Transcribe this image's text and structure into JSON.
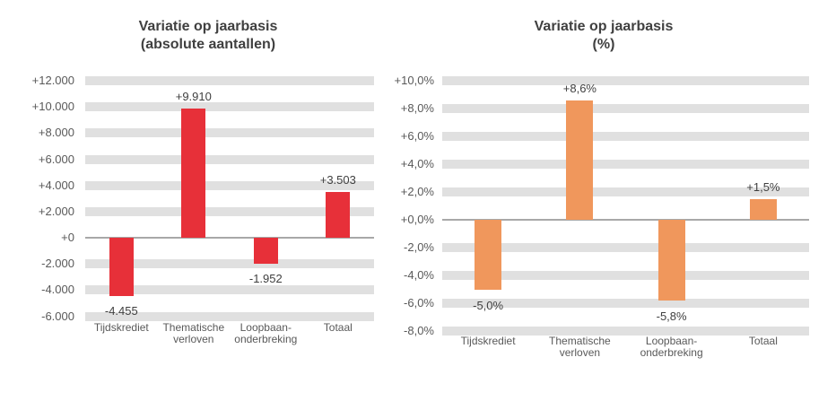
{
  "figure": {
    "description": "Two vertical bar charts, year-on-year variation in absolute numbers (red) and in percent (orange)"
  },
  "colors": {
    "background": "#ffffff",
    "stripe": "#e0e0e0",
    "zero_line": "#a8a8a8",
    "title_text": "#404040",
    "axis_text": "#595959",
    "value_text": "#3f3f3f",
    "red_bar": "#e73039",
    "orange_bar": "#f0975c"
  },
  "chart_data": [
    {
      "type": "bar",
      "title_lines": [
        "Variatie op jaarbasis",
        "(absolute aantallen)"
      ],
      "categories": [
        [
          "Tijdskrediet"
        ],
        [
          "Thematische",
          "verloven"
        ],
        [
          "Loopbaan-",
          "onderbreking"
        ],
        [
          "Totaal"
        ]
      ],
      "values": [
        -4455,
        9910,
        -1952,
        3503
      ],
      "value_labels": [
        "-4.455",
        "+9.910",
        "-1.952",
        "+3.503"
      ],
      "bar_color": "#e73039",
      "y_ticks": [
        12000,
        10000,
        8000,
        6000,
        4000,
        2000,
        0,
        -2000,
        -4000,
        -6000
      ],
      "y_tick_labels": [
        "+12.000",
        "+10.000",
        "+8.000",
        "+6.000",
        "+4.000",
        "+2.000",
        "+0",
        "-2.000",
        "-4.000",
        "-6.000"
      ],
      "ylim": [
        -6000,
        12000
      ],
      "grid": "horizontal-stripes",
      "legend": null,
      "xlabel": "",
      "ylabel": ""
    },
    {
      "type": "bar",
      "title_lines": [
        "Variatie op jaarbasis",
        "(%)"
      ],
      "categories": [
        [
          "Tijdskrediet"
        ],
        [
          "Thematische",
          "verloven"
        ],
        [
          "Loopbaan-",
          "onderbreking"
        ],
        [
          "Totaal"
        ]
      ],
      "values": [
        -5.0,
        8.6,
        -5.8,
        1.5
      ],
      "value_labels": [
        "-5,0%",
        "+8,6%",
        "-5,8%",
        "+1,5%"
      ],
      "bar_color": "#f0975c",
      "y_ticks": [
        10,
        8,
        6,
        4,
        2,
        0,
        -2,
        -4,
        -6,
        -8
      ],
      "y_tick_labels": [
        "+10,0%",
        "+8,0%",
        "+6,0%",
        "+4,0%",
        "+2,0%",
        "+0,0%",
        "-2,0%",
        "-4,0%",
        "-6,0%",
        "-8,0%"
      ],
      "ylim": [
        -8,
        10
      ],
      "grid": "horizontal-stripes",
      "legend": null,
      "xlabel": "",
      "ylabel": ""
    }
  ]
}
